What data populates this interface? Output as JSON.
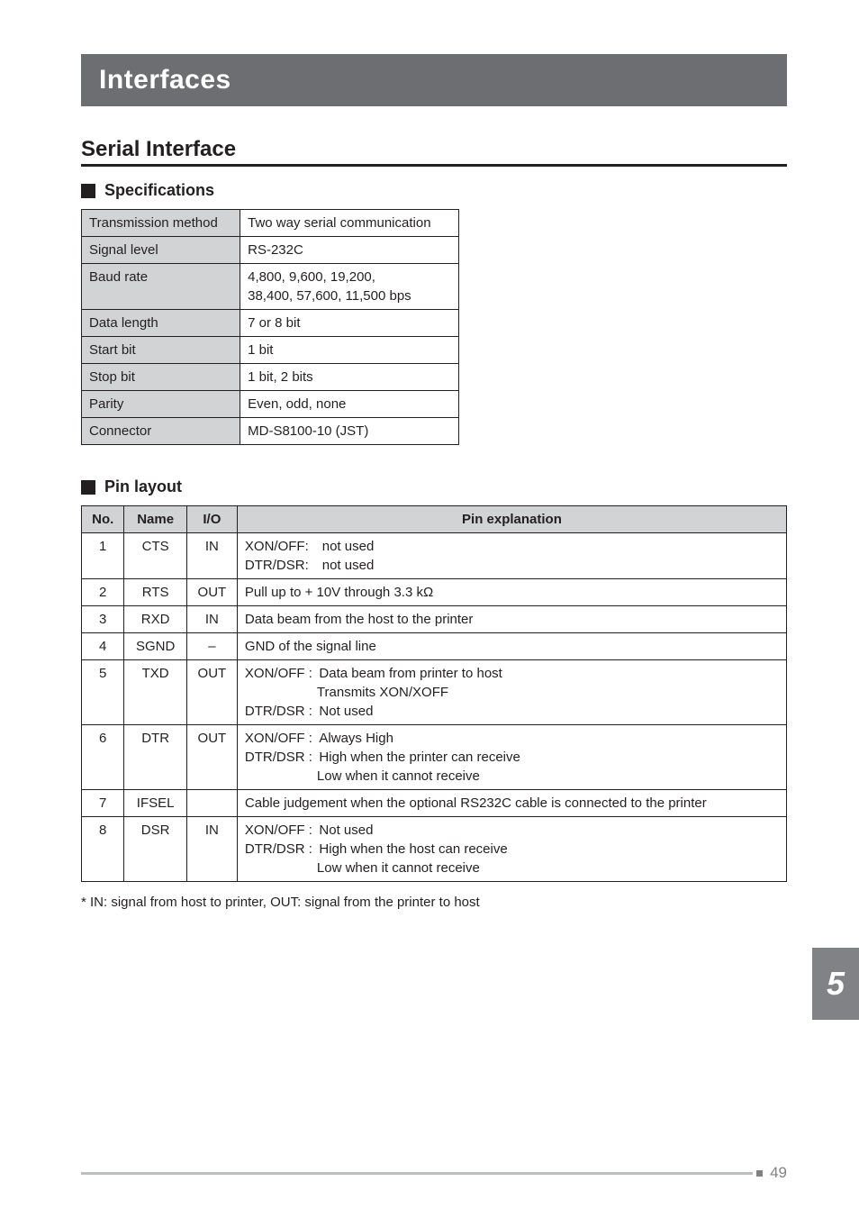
{
  "title": "Interfaces",
  "section_heading": "Serial Interface",
  "spec_subheading": "Specifications",
  "pin_subheading": "Pin layout",
  "spec_table": {
    "rows": [
      {
        "label": "Transmission method",
        "value": "Two way serial communication"
      },
      {
        "label": "Signal level",
        "value": "RS-232C"
      },
      {
        "label": "Baud rate",
        "value": "4,800, 9,600, 19,200,\n38,400, 57,600, 11,500 bps"
      },
      {
        "label": "Data length",
        "value": "7 or 8 bit"
      },
      {
        "label": "Start bit",
        "value": "1 bit"
      },
      {
        "label": "Stop bit",
        "value": "1 bit, 2 bits"
      },
      {
        "label": "Parity",
        "value": "Even, odd, none"
      },
      {
        "label": "Connector",
        "value": "MD-S8100-10 (JST)"
      }
    ]
  },
  "pin_table": {
    "headers": [
      "No.",
      "Name",
      "I/O",
      "Pin explanation"
    ],
    "rows": [
      {
        "no": "1",
        "name": "CTS",
        "io": "IN",
        "expl": "XON/OFF: not used\nDTR/DSR: not used"
      },
      {
        "no": "2",
        "name": "RTS",
        "io": "OUT",
        "expl": "Pull up to + 10V through 3.3 kΩ"
      },
      {
        "no": "3",
        "name": "RXD",
        "io": "IN",
        "expl": "Data beam from the host to the printer"
      },
      {
        "no": "4",
        "name": "SGND",
        "io": "–",
        "expl": "GND of the signal line"
      },
      {
        "no": "5",
        "name": "TXD",
        "io": "OUT",
        "expl": "XON/OFF : Data beam from printer to host\n<span class=\"indent\">Transmits XON/XOFF</span>DTR/DSR : Not used"
      },
      {
        "no": "6",
        "name": "DTR",
        "io": "OUT",
        "expl": "XON/OFF : Always High\nDTR/DSR : High when the printer can receive\n<span class=\"indent\">Low when it cannot receive</span>"
      },
      {
        "no": "7",
        "name": "IFSEL",
        "io": "",
        "expl": "Cable judgement when the optional RS232C cable is connected to the printer"
      },
      {
        "no": "8",
        "name": "DSR",
        "io": "IN",
        "expl": "XON/OFF : Not used\nDTR/DSR : High when the host can receive\n<span class=\"indent\">Low when it cannot receive</span>"
      }
    ]
  },
  "footnote": "* IN: signal from host to printer, OUT: signal from the printer to host",
  "side_tab": "5",
  "page_number": "49",
  "colors": {
    "title_bg": "#6d6e71",
    "header_bg": "#d1d3d4",
    "side_tab_bg": "#808285",
    "footer_bar": "#bcbec0"
  }
}
